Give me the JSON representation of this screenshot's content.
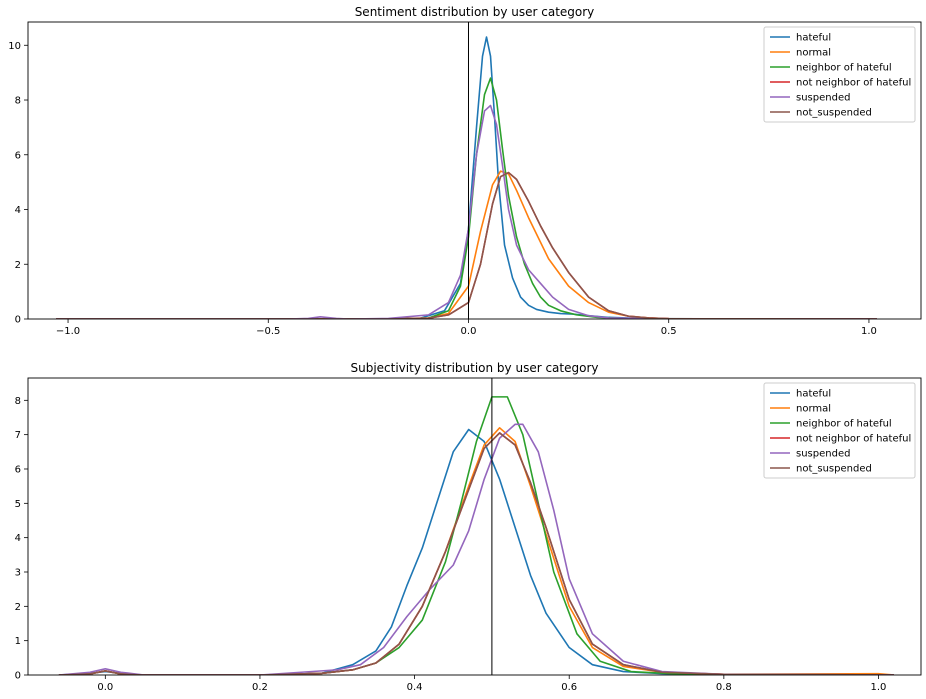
{
  "chart_data": [
    {
      "type": "line",
      "title": "Sentiment distribution by user category",
      "xlabel": "",
      "ylabel": "",
      "xlim": [
        -1.1,
        1.13
      ],
      "ylim": [
        0,
        10.85
      ],
      "xticks": [
        -1.0,
        -0.5,
        0.0,
        0.5,
        1.0
      ],
      "xtick_labels": [
        "−1.0",
        "−0.5",
        "0.0",
        "0.5",
        "1.0"
      ],
      "yticks": [
        0,
        2,
        4,
        6,
        8,
        10
      ],
      "ytick_labels": [
        "0",
        "2",
        "4",
        "6",
        "8",
        "10"
      ],
      "vline": 0.0,
      "grid": false,
      "legend_position": "top-right",
      "series": [
        {
          "name": "hateful",
          "color": "#1f77b4",
          "x": [
            -1.03,
            -0.5,
            -0.2,
            -0.12,
            -0.06,
            -0.02,
            0.0,
            0.02,
            0.035,
            0.045,
            0.055,
            0.065,
            0.075,
            0.09,
            0.11,
            0.13,
            0.15,
            0.17,
            0.2,
            0.23,
            0.26,
            0.3,
            0.35,
            0.45,
            1.02
          ],
          "y": [
            0,
            0,
            0,
            0.03,
            0.3,
            1.3,
            3.3,
            7.0,
            9.6,
            10.3,
            9.6,
            7.4,
            5.0,
            2.7,
            1.5,
            0.8,
            0.5,
            0.35,
            0.25,
            0.2,
            0.18,
            0.12,
            0.06,
            0.01,
            0
          ]
        },
        {
          "name": "normal",
          "color": "#ff7f0e",
          "x": [
            -1.03,
            -0.5,
            -0.2,
            -0.1,
            -0.05,
            0.0,
            0.03,
            0.06,
            0.08,
            0.1,
            0.12,
            0.15,
            0.2,
            0.25,
            0.3,
            0.35,
            0.4,
            0.45,
            0.5,
            1.02
          ],
          "y": [
            0,
            0,
            0,
            0.04,
            0.2,
            1.2,
            3.2,
            4.9,
            5.4,
            5.3,
            4.7,
            3.7,
            2.2,
            1.2,
            0.6,
            0.25,
            0.1,
            0.04,
            0.01,
            0
          ]
        },
        {
          "name": "neighbor of hateful",
          "color": "#2ca02c",
          "x": [
            -1.03,
            -0.5,
            -0.2,
            -0.1,
            -0.05,
            -0.02,
            0.0,
            0.02,
            0.04,
            0.055,
            0.07,
            0.085,
            0.1,
            0.12,
            0.14,
            0.16,
            0.18,
            0.2,
            0.23,
            0.27,
            0.32,
            0.4,
            1.02
          ],
          "y": [
            0,
            0,
            0,
            0.03,
            0.3,
            1.2,
            3.0,
            6.0,
            8.2,
            8.8,
            8.0,
            6.2,
            4.5,
            3.0,
            2.0,
            1.3,
            0.8,
            0.5,
            0.3,
            0.15,
            0.06,
            0.01,
            0
          ]
        },
        {
          "name": "not neighbor of hateful",
          "color": "#d62728",
          "x": [
            -1.03,
            -0.5,
            -0.2,
            -0.1,
            -0.05,
            0.0,
            0.03,
            0.06,
            0.08,
            0.1,
            0.12,
            0.15,
            0.18,
            0.21,
            0.25,
            0.3,
            0.35,
            0.4,
            0.45,
            0.5,
            1.02
          ],
          "y": [
            0,
            0,
            0,
            0.03,
            0.15,
            0.6,
            2.0,
            4.2,
            5.2,
            5.35,
            5.1,
            4.3,
            3.4,
            2.6,
            1.7,
            0.8,
            0.3,
            0.1,
            0.04,
            0.01,
            0
          ]
        },
        {
          "name": "suspended",
          "color": "#9467bd",
          "x": [
            -1.03,
            -0.45,
            -0.4,
            -0.37,
            -0.33,
            -0.3,
            -0.2,
            -0.1,
            -0.05,
            -0.02,
            0.0,
            0.02,
            0.04,
            0.055,
            0.07,
            0.085,
            0.1,
            0.12,
            0.15,
            0.18,
            0.21,
            0.25,
            0.3,
            0.35,
            0.45,
            1.02
          ],
          "y": [
            0,
            0,
            0.02,
            0.08,
            0.02,
            0,
            0.02,
            0.15,
            0.6,
            1.6,
            3.3,
            6.0,
            7.6,
            7.8,
            7.1,
            5.6,
            4.0,
            2.7,
            1.8,
            1.3,
            0.8,
            0.35,
            0.12,
            0.04,
            0.01,
            0
          ]
        },
        {
          "name": "not_suspended",
          "color": "#8c564b",
          "x": [
            -1.03,
            -0.5,
            -0.2,
            -0.1,
            -0.05,
            0.0,
            0.03,
            0.06,
            0.08,
            0.1,
            0.12,
            0.15,
            0.18,
            0.21,
            0.25,
            0.3,
            0.35,
            0.4,
            0.45,
            0.5,
            1.02
          ],
          "y": [
            0,
            0,
            0,
            0.03,
            0.15,
            0.6,
            2.0,
            4.2,
            5.2,
            5.35,
            5.1,
            4.3,
            3.4,
            2.6,
            1.7,
            0.8,
            0.3,
            0.1,
            0.04,
            0.01,
            0
          ]
        }
      ]
    },
    {
      "type": "line",
      "title": "Subjectivity distribution by user category",
      "xlabel": "",
      "ylabel": "",
      "xlim": [
        -0.1,
        1.055
      ],
      "ylim": [
        0,
        8.65
      ],
      "xticks": [
        0.0,
        0.2,
        0.4,
        0.6,
        0.8,
        1.0
      ],
      "xtick_labels": [
        "0.0",
        "0.2",
        "0.4",
        "0.6",
        "0.8",
        "1.0"
      ],
      "yticks": [
        0,
        1,
        2,
        3,
        4,
        5,
        6,
        7,
        8
      ],
      "ytick_labels": [
        "0",
        "1",
        "2",
        "3",
        "4",
        "5",
        "6",
        "7",
        "8"
      ],
      "vline": 0.5,
      "grid": false,
      "legend_position": "top-right",
      "series": [
        {
          "name": "hateful",
          "color": "#1f77b4",
          "x": [
            -0.06,
            -0.02,
            0.0,
            0.02,
            0.05,
            0.2,
            0.28,
            0.32,
            0.35,
            0.37,
            0.39,
            0.41,
            0.43,
            0.45,
            0.47,
            0.49,
            0.51,
            0.53,
            0.55,
            0.57,
            0.6,
            0.63,
            0.67,
            0.72,
            0.8,
            1.02
          ],
          "y": [
            0,
            0.05,
            0.1,
            0.05,
            0,
            0,
            0.05,
            0.3,
            0.7,
            1.4,
            2.6,
            3.7,
            5.1,
            6.5,
            7.15,
            6.8,
            5.7,
            4.3,
            2.9,
            1.8,
            0.8,
            0.3,
            0.1,
            0.04,
            0.01,
            0
          ]
        },
        {
          "name": "normal",
          "color": "#ff7f0e",
          "x": [
            -0.06,
            -0.02,
            0.0,
            0.02,
            0.05,
            0.2,
            0.28,
            0.32,
            0.35,
            0.38,
            0.41,
            0.44,
            0.47,
            0.49,
            0.51,
            0.53,
            0.55,
            0.57,
            0.6,
            0.63,
            0.67,
            0.72,
            0.8,
            1.0,
            1.02
          ],
          "y": [
            0,
            0.03,
            0.12,
            0.03,
            0,
            0,
            0.05,
            0.15,
            0.35,
            0.9,
            2.0,
            3.6,
            5.5,
            6.7,
            7.2,
            6.8,
            5.5,
            4.1,
            2.0,
            0.8,
            0.25,
            0.08,
            0.02,
            0.04,
            0
          ]
        },
        {
          "name": "neighbor of hateful",
          "color": "#2ca02c",
          "x": [
            -0.06,
            -0.02,
            0.0,
            0.02,
            0.05,
            0.2,
            0.28,
            0.32,
            0.35,
            0.38,
            0.41,
            0.44,
            0.46,
            0.48,
            0.5,
            0.52,
            0.54,
            0.56,
            0.58,
            0.61,
            0.64,
            0.68,
            0.75,
            1.02
          ],
          "y": [
            0,
            0.03,
            0.12,
            0.03,
            0,
            0,
            0.05,
            0.15,
            0.35,
            0.8,
            1.6,
            3.3,
            5.0,
            6.8,
            8.1,
            8.1,
            7.0,
            5.0,
            3.0,
            1.2,
            0.4,
            0.1,
            0.02,
            0
          ]
        },
        {
          "name": "not neighbor of hateful",
          "color": "#d62728",
          "x": [
            -0.06,
            -0.02,
            0.0,
            0.02,
            0.05,
            0.2,
            0.28,
            0.32,
            0.35,
            0.38,
            0.41,
            0.44,
            0.47,
            0.49,
            0.51,
            0.53,
            0.55,
            0.57,
            0.6,
            0.63,
            0.67,
            0.72,
            0.8,
            1.02
          ],
          "y": [
            0,
            0.03,
            0.12,
            0.03,
            0,
            0,
            0.05,
            0.15,
            0.35,
            0.9,
            2.0,
            3.6,
            5.4,
            6.6,
            7.05,
            6.7,
            5.6,
            4.3,
            2.2,
            0.9,
            0.3,
            0.08,
            0.02,
            0
          ]
        },
        {
          "name": "suspended",
          "color": "#9467bd",
          "x": [
            -0.06,
            -0.02,
            0.0,
            0.02,
            0.05,
            0.2,
            0.28,
            0.3,
            0.33,
            0.36,
            0.39,
            0.42,
            0.45,
            0.47,
            0.49,
            0.51,
            0.53,
            0.54,
            0.56,
            0.58,
            0.6,
            0.63,
            0.67,
            0.72,
            0.8,
            1.02
          ],
          "y": [
            0,
            0.08,
            0.18,
            0.08,
            0,
            0,
            0.12,
            0.15,
            0.3,
            0.8,
            1.7,
            2.5,
            3.2,
            4.2,
            5.7,
            6.9,
            7.3,
            7.3,
            6.5,
            4.8,
            2.8,
            1.2,
            0.4,
            0.1,
            0.02,
            0
          ]
        },
        {
          "name": "not_suspended",
          "color": "#8c564b",
          "x": [
            -0.06,
            -0.02,
            0.0,
            0.02,
            0.05,
            0.2,
            0.28,
            0.32,
            0.35,
            0.38,
            0.41,
            0.44,
            0.47,
            0.49,
            0.51,
            0.53,
            0.55,
            0.57,
            0.6,
            0.63,
            0.67,
            0.72,
            0.8,
            1.02
          ],
          "y": [
            0,
            0.03,
            0.12,
            0.03,
            0,
            0,
            0.05,
            0.15,
            0.35,
            0.9,
            2.0,
            3.6,
            5.4,
            6.6,
            7.05,
            6.7,
            5.6,
            4.3,
            2.2,
            0.9,
            0.3,
            0.08,
            0.02,
            0
          ]
        }
      ]
    }
  ]
}
